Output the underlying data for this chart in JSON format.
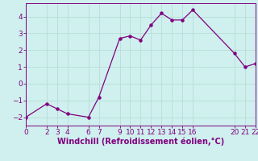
{
  "x": [
    0,
    2,
    3,
    4,
    6,
    7,
    9,
    10,
    11,
    12,
    13,
    14,
    15,
    16,
    20,
    21,
    22
  ],
  "y": [
    -2.0,
    -1.2,
    -1.5,
    -1.8,
    -2.0,
    -0.8,
    2.7,
    2.85,
    2.6,
    3.5,
    4.2,
    3.8,
    3.8,
    4.4,
    1.8,
    1.0,
    1.2
  ],
  "xlim": [
    0,
    22
  ],
  "ylim": [
    -2.5,
    4.8
  ],
  "xticks": [
    0,
    2,
    3,
    4,
    6,
    7,
    9,
    10,
    11,
    12,
    13,
    14,
    15,
    16,
    20,
    21,
    22
  ],
  "yticks": [
    -2,
    -1,
    0,
    1,
    2,
    3,
    4
  ],
  "xlabel": "Windchill (Refroidissement éolien,°C)",
  "line_color": "#800080",
  "marker_color": "#800080",
  "bg_color": "#cff0ee",
  "grid_color": "#b8ddd8",
  "tick_color": "#800080",
  "label_color": "#800080",
  "font_size": 6.5,
  "xlabel_fontsize": 7.0
}
